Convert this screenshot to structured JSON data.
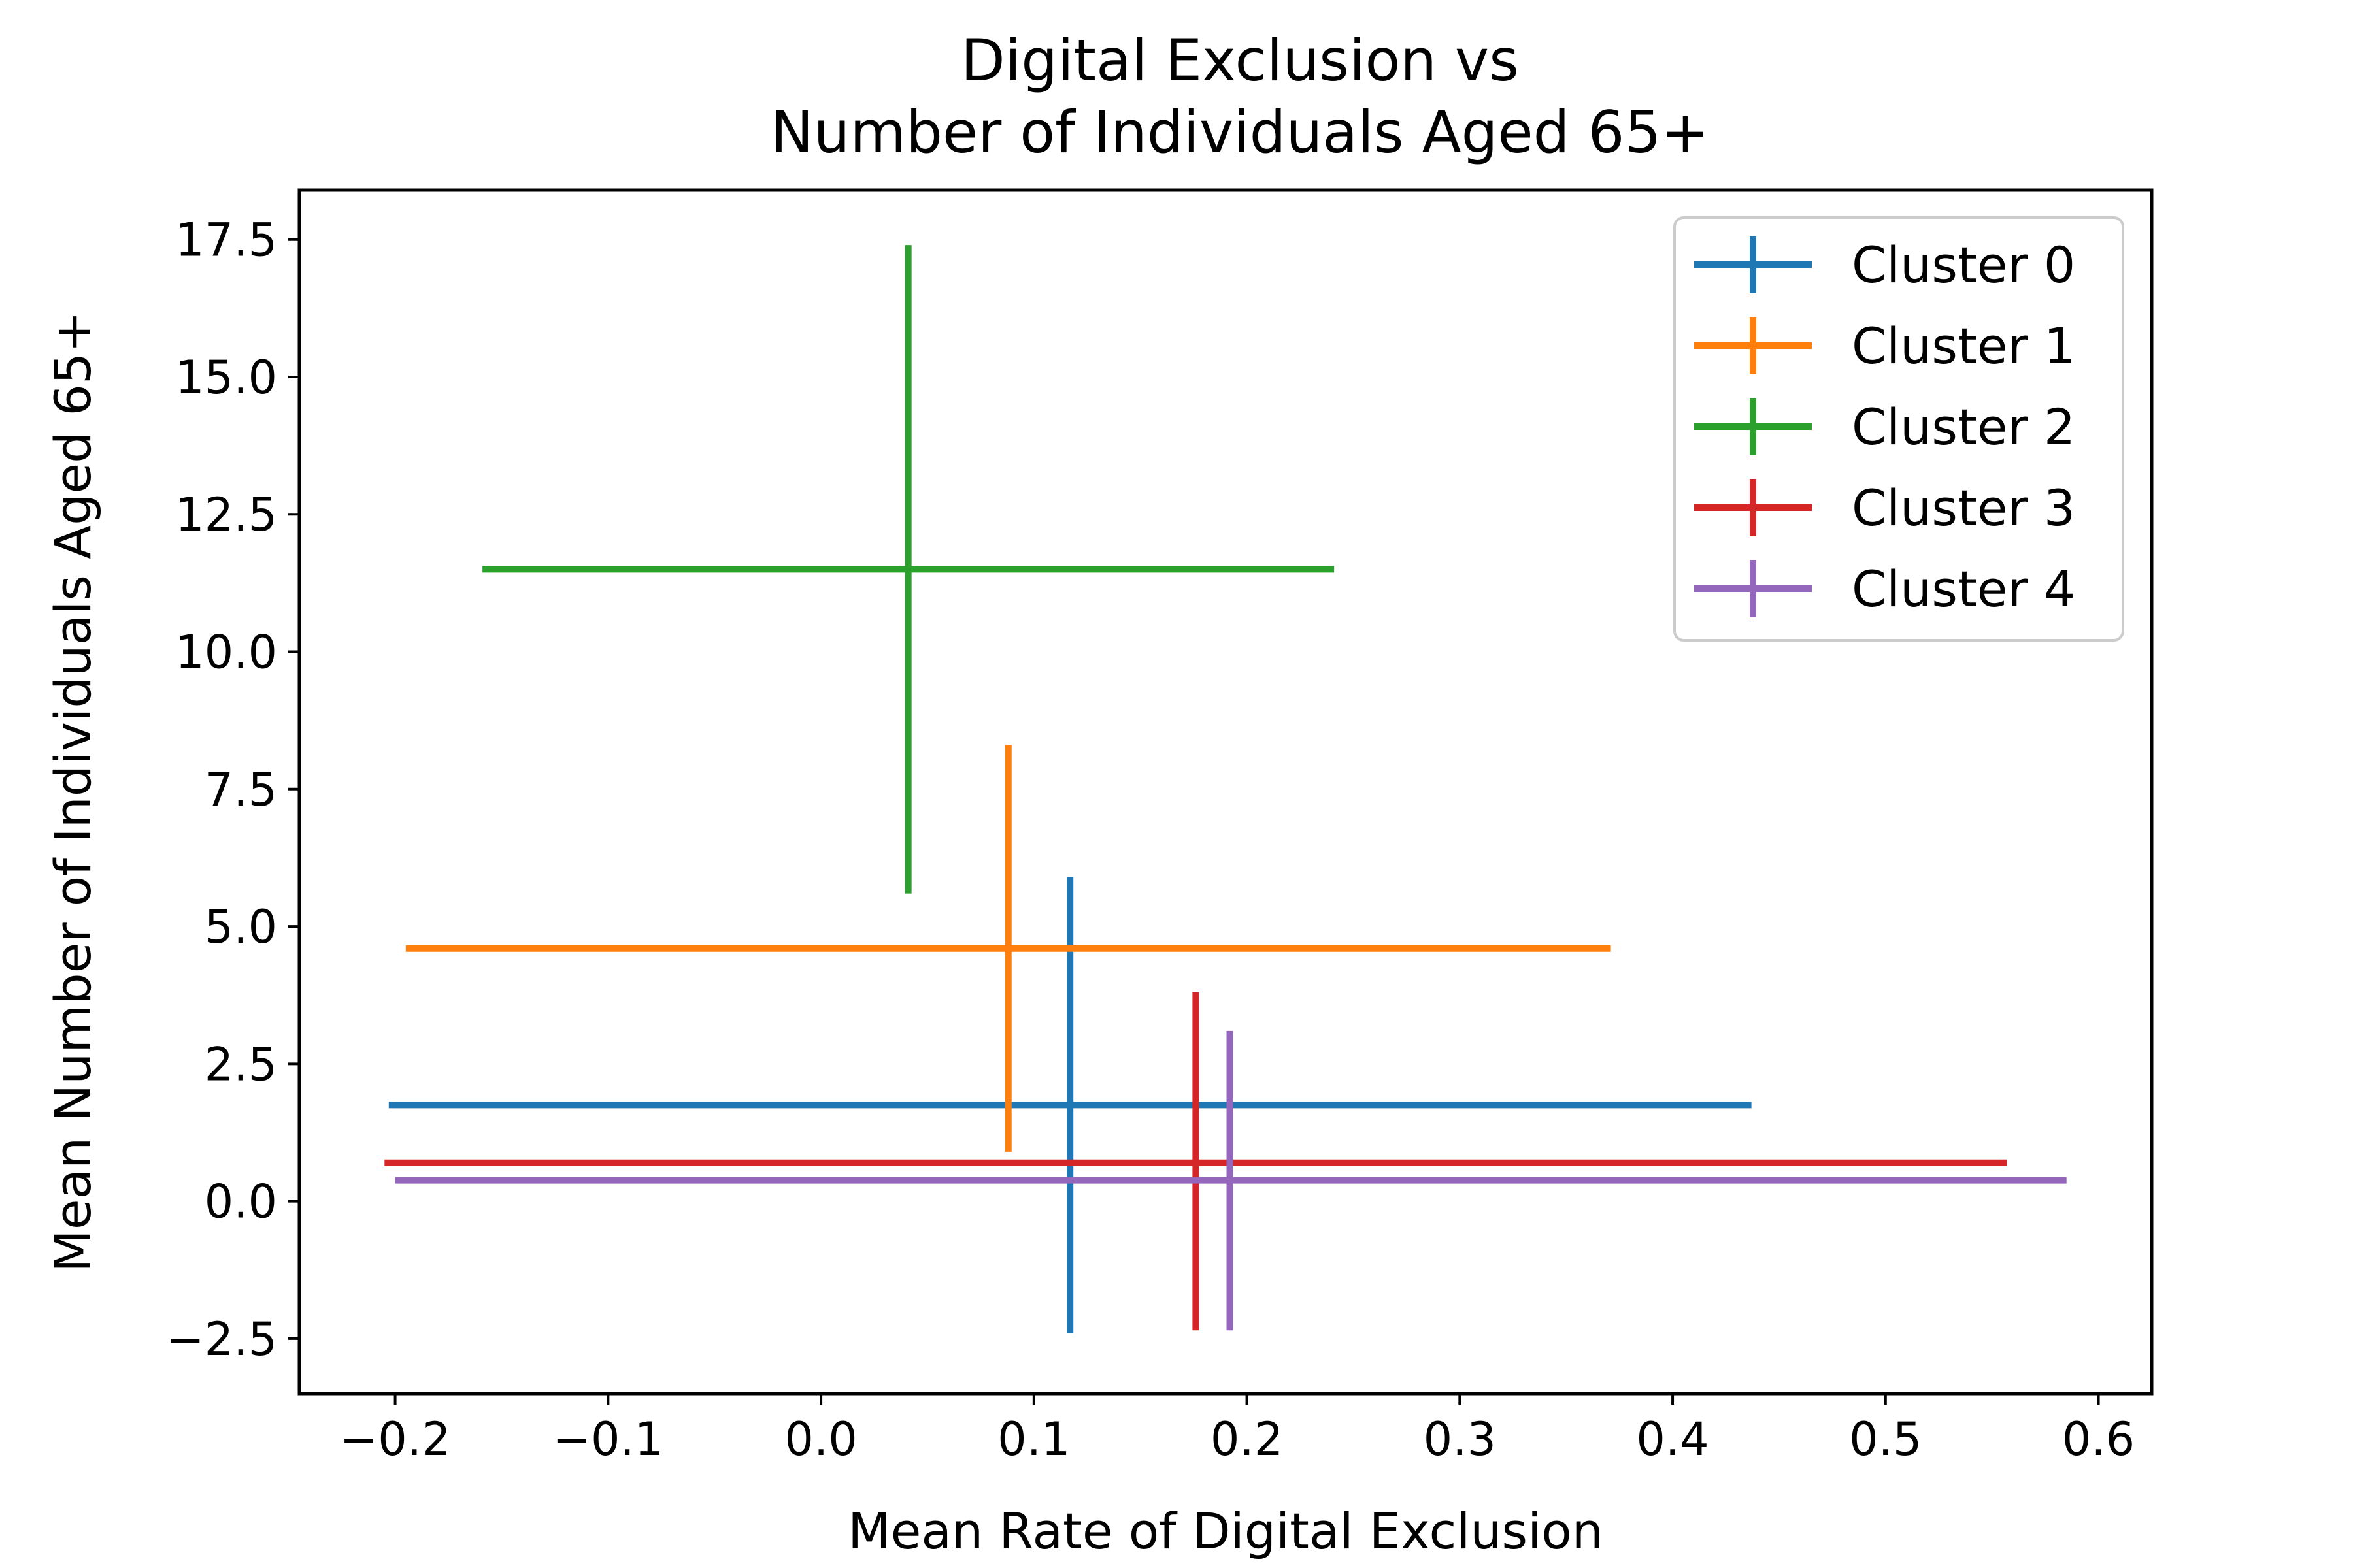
{
  "chart_data": {
    "type": "errorbar",
    "title_lines": [
      "Digital Exclusion vs",
      "Number of Individuals Aged 65+"
    ],
    "xlabel": "Mean Rate of Digital Exclusion",
    "ylabel": "Mean Number of Individuals Aged 65+",
    "xlim": [
      -0.245,
      0.625
    ],
    "ylim": [
      -3.5,
      18.4
    ],
    "xticks": [
      -0.2,
      -0.1,
      0.0,
      0.1,
      0.2,
      0.3,
      0.4,
      0.5,
      0.6
    ],
    "xtick_labels": [
      "−0.2",
      "−0.1",
      "0.0",
      "0.1",
      "0.2",
      "0.3",
      "0.4",
      "0.5",
      "0.6"
    ],
    "yticks": [
      -2.5,
      0.0,
      2.5,
      5.0,
      7.5,
      10.0,
      12.5,
      15.0,
      17.5
    ],
    "ytick_labels": [
      "−2.5",
      "0.0",
      "2.5",
      "5.0",
      "7.5",
      "10.0",
      "12.5",
      "15.0",
      "17.5"
    ],
    "grid": false,
    "legend_position": "upper right",
    "series": [
      {
        "name": "Cluster 0",
        "color": "#1f77b4",
        "x": 0.117,
        "y": 1.75,
        "x_range": [
          -0.203,
          0.437
        ],
        "y_range": [
          -2.4,
          5.9
        ]
      },
      {
        "name": "Cluster 1",
        "color": "#ff7f0e",
        "x": 0.088,
        "y": 4.6,
        "x_range": [
          -0.195,
          0.371
        ],
        "y_range": [
          0.9,
          8.3
        ]
      },
      {
        "name": "Cluster 2",
        "color": "#2ca02c",
        "x": 0.041,
        "y": 11.5,
        "x_range": [
          -0.159,
          0.241
        ],
        "y_range": [
          5.6,
          17.4
        ]
      },
      {
        "name": "Cluster 3",
        "color": "#d62728",
        "x": 0.176,
        "y": 0.7,
        "x_range": [
          -0.205,
          0.557
        ],
        "y_range": [
          -2.35,
          3.8
        ]
      },
      {
        "name": "Cluster 4",
        "color": "#9467bd",
        "x": 0.192,
        "y": 0.38,
        "x_range": [
          -0.2,
          0.585
        ],
        "y_range": [
          -2.35,
          3.1
        ]
      }
    ]
  }
}
